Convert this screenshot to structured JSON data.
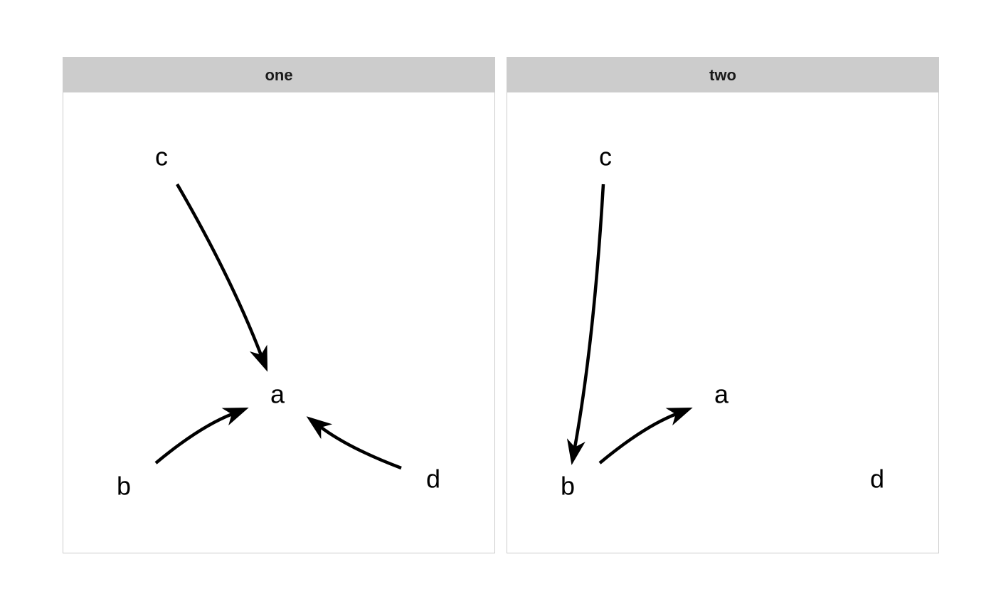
{
  "panels": [
    {
      "title": "one",
      "nodes": [
        {
          "id": "a",
          "label": "a"
        },
        {
          "id": "b",
          "label": "b"
        },
        {
          "id": "c",
          "label": "c"
        },
        {
          "id": "d",
          "label": "d"
        }
      ],
      "edges": [
        {
          "from": "c",
          "to": "a"
        },
        {
          "from": "b",
          "to": "a"
        },
        {
          "from": "d",
          "to": "a"
        }
      ]
    },
    {
      "title": "two",
      "nodes": [
        {
          "id": "a",
          "label": "a"
        },
        {
          "id": "b",
          "label": "b"
        },
        {
          "id": "c",
          "label": "c"
        },
        {
          "id": "d",
          "label": "d"
        }
      ],
      "edges": [
        {
          "from": "c",
          "to": "b"
        },
        {
          "from": "b",
          "to": "a"
        }
      ]
    }
  ]
}
